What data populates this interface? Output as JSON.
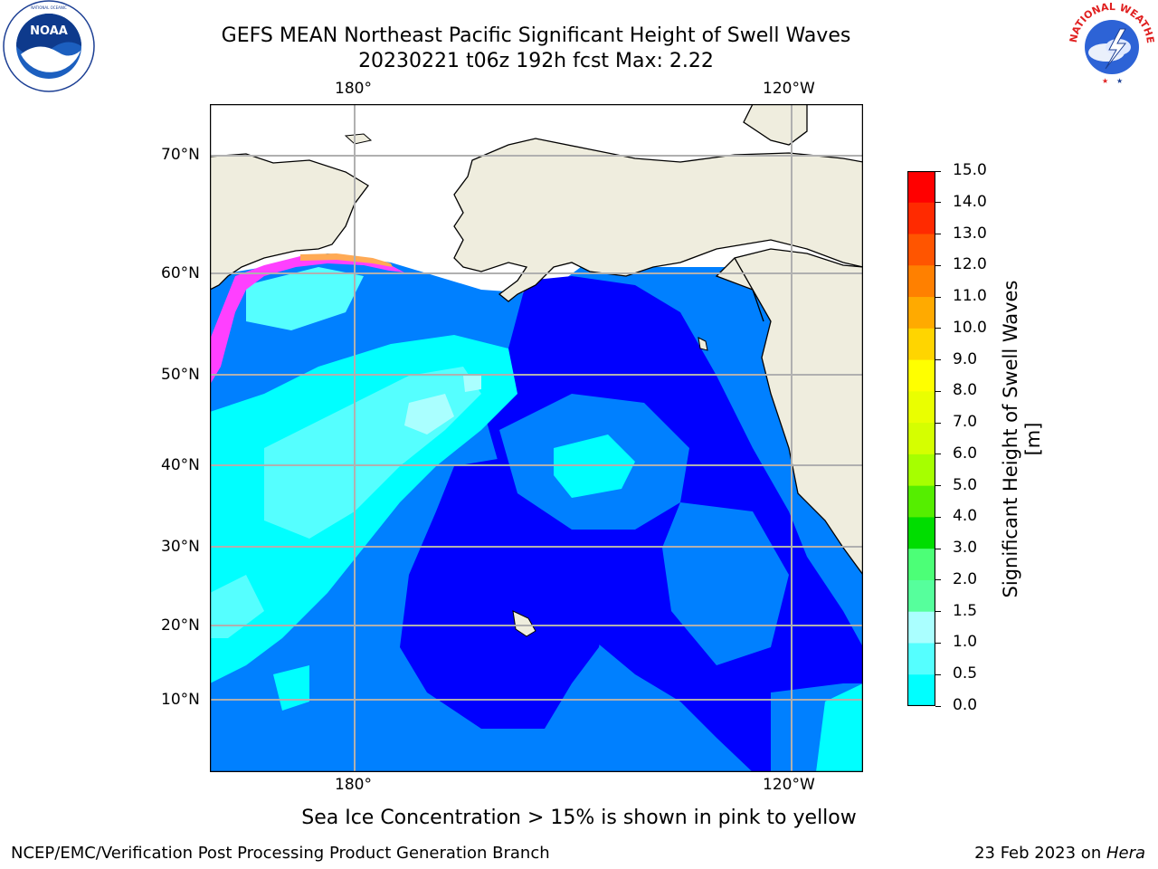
{
  "title": {
    "line1": "GEFS MEAN Northeast Pacific Significant Height of Swell Waves",
    "line2": "20230221 t06z 192h fcst   Max: 2.22"
  },
  "logos": {
    "noaa": {
      "name": "noaa-logo",
      "text": "NOAA",
      "ring_text": "NATIONAL OCEANIC AND ATMOSPHERIC ADMINISTRATION · U.S. DEPARTMENT OF COMMERCE"
    },
    "nws": {
      "name": "nws-logo",
      "ring_text": "NATIONAL WEATHER SERVICE"
    }
  },
  "map": {
    "lon_labels": [
      "180°",
      "120°W"
    ],
    "lat_labels": [
      "70°N",
      "60°N",
      "50°N",
      "40°N",
      "30°N",
      "20°N",
      "10°N"
    ],
    "colors": {
      "land": "#efedde",
      "ice_free_land": "#ffffff",
      "grid": "#b0b0b0",
      "coast": "#000000"
    }
  },
  "colorbar": {
    "title": "Significant Height of Swell Waves [m]",
    "ticks": [
      "15.0",
      "14.0",
      "13.0",
      "12.0",
      "11.0",
      "10.0",
      "9.0",
      "8.0",
      "7.0",
      "6.0",
      "5.0",
      "4.0",
      "3.0",
      "2.0",
      "1.5",
      "1.0",
      "0.5",
      "0.0"
    ],
    "colors": [
      "#ff0000",
      "#ff2a00",
      "#ff5500",
      "#ff8000",
      "#ffaa00",
      "#ffd500",
      "#ffff00",
      "#eaff00",
      "#d5ff00",
      "#a6ff00",
      "#55ee00",
      "#00dd00",
      "#4cff77",
      "#56ff9c",
      "#aaffff",
      "#55ffff",
      "#00ffff",
      "#0080ff",
      "#0000ff"
    ]
  },
  "footnote": "Sea Ice Concentration > 15% is shown in pink to yellow",
  "footer": {
    "left": "NCEP/EMC/Verification Post Processing Product Generation Branch",
    "right_prefix": "23 Feb 2023 on ",
    "right_italic": "Hera"
  }
}
